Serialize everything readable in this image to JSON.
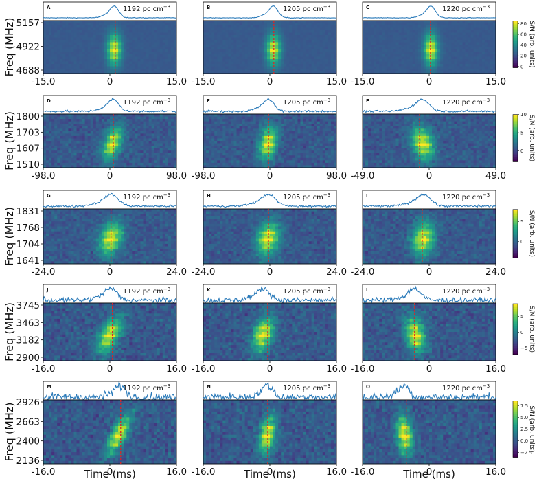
{
  "chart_data": {
    "type": "heatmap",
    "xlabel": "Time (ms)",
    "ylabel": "Freq (MHz)",
    "colorbar_label": "S/N (arb. units)",
    "colormap": "viridis",
    "profile_color": "#2a7ab9",
    "marker_color": "#d62728",
    "rows": [
      {
        "yticks": [
          "5157",
          "4922",
          "4688"
        ],
        "cbar_range": [
          -2,
          85
        ],
        "cbar_ticks": [
          0,
          20,
          40,
          60,
          80
        ],
        "noise": 0.05,
        "panels": [
          {
            "letter": "A",
            "dm": "1192 pc cm",
            "xlim": [
              -15,
              15
            ],
            "xticks": [
              "-15.0",
              "0",
              "15.0"
            ],
            "peak": 1.0,
            "marker": 1.2,
            "drift": 0.0,
            "width": 1.0,
            "profile_noise": 0.01
          },
          {
            "letter": "B",
            "dm": "1205 pc cm",
            "xlim": [
              -15,
              15
            ],
            "xticks": [
              "-15.0",
              "0",
              "15.0"
            ],
            "peak": 0.8,
            "marker": 0.9,
            "drift": 0.0,
            "width": 1.0,
            "profile_noise": 0.01
          },
          {
            "letter": "C",
            "dm": "1220 pc cm",
            "xlim": [
              -15,
              15
            ],
            "xticks": [
              "-15.0",
              "0",
              "15.0"
            ],
            "peak": 0.4,
            "marker": 0.3,
            "drift": 0.0,
            "width": 1.0,
            "profile_noise": 0.01
          }
        ]
      },
      {
        "yticks": [
          "1800",
          "1703",
          "1607",
          "1510"
        ],
        "cbar_range": [
          -3,
          10
        ],
        "cbar_ticks": [
          0,
          5,
          10
        ],
        "noise": 0.25,
        "panels": [
          {
            "letter": "D",
            "dm": "1192 pc cm",
            "xlim": [
              -98,
              98
            ],
            "xticks": [
              "-98.0",
              "0",
              "98.0"
            ],
            "peak": 5,
            "marker": 5,
            "drift": -20,
            "width": 8,
            "profile_noise": 0.03
          },
          {
            "letter": "E",
            "dm": "1205 pc cm",
            "xlim": [
              -98,
              98
            ],
            "xticks": [
              "-98.0",
              "0",
              "98.0"
            ],
            "peak": -2,
            "marker": -2,
            "drift": -10,
            "width": 8,
            "profile_noise": 0.03
          },
          {
            "letter": "F",
            "dm": "1220 pc cm",
            "xlim": [
              -49,
              49
            ],
            "xticks": [
              "-49.0",
              "0",
              "49.0"
            ],
            "peak": -5,
            "marker": -7,
            "drift": 6,
            "width": 5,
            "profile_noise": 0.03
          }
        ]
      },
      {
        "yticks": [
          "1831",
          "1768",
          "1704",
          "1641"
        ],
        "cbar_range": [
          -4,
          8
        ],
        "cbar_ticks": [
          0,
          5
        ],
        "noise": 0.25,
        "panels": [
          {
            "letter": "G",
            "dm": "1192 pc cm",
            "xlim": [
              -24,
              24
            ],
            "xticks": [
              "-24.0",
              "0",
              "24.0"
            ],
            "peak": 0.5,
            "marker": 0.4,
            "drift": -4,
            "width": 2.5,
            "profile_noise": 0.03
          },
          {
            "letter": "H",
            "dm": "1205 pc cm",
            "xlim": [
              -24,
              24
            ],
            "xticks": [
              "-24.0",
              "0",
              "24.0"
            ],
            "peak": -0.5,
            "marker": -0.5,
            "drift": -3,
            "width": 2.5,
            "profile_noise": 0.03
          },
          {
            "letter": "I",
            "dm": "1220 pc cm",
            "xlim": [
              -24,
              24
            ],
            "xticks": [
              "-24.0",
              "0",
              "24.0"
            ],
            "peak": -2,
            "marker": -2.5,
            "drift": -2,
            "width": 2.5,
            "profile_noise": 0.03
          }
        ]
      },
      {
        "yticks": [
          "3745",
          "3463",
          "3182",
          "2900"
        ],
        "cbar_range": [
          -7,
          9
        ],
        "cbar_ticks": [
          -5,
          0,
          5
        ],
        "noise": 0.3,
        "panels": [
          {
            "letter": "J",
            "dm": "1192 pc cm",
            "xlim": [
              -16,
              16
            ],
            "xticks": [
              "-16.0",
              "0",
              "16.0"
            ],
            "peak": 0.2,
            "marker": 0.6,
            "drift": -5,
            "width": 1.5,
            "profile_noise": 0.08
          },
          {
            "letter": "K",
            "dm": "1205 pc cm",
            "xlim": [
              -16,
              16
            ],
            "xticks": [
              "-16.0",
              "0",
              "16.0"
            ],
            "peak": -1.5,
            "marker": -0.5,
            "drift": -3,
            "width": 1.5,
            "profile_noise": 0.08
          },
          {
            "letter": "L",
            "dm": "1220 pc cm",
            "xlim": [
              -16,
              16
            ],
            "xticks": [
              "-16.0",
              "0",
              "16.0"
            ],
            "peak": -3.5,
            "marker": -3.5,
            "drift": 2,
            "width": 1.5,
            "profile_noise": 0.08
          }
        ]
      },
      {
        "yticks": [
          "2926",
          "2663",
          "2400",
          "2136"
        ],
        "cbar_range": [
          -3.5,
          8.5
        ],
        "cbar_ticks": [
          -2.5,
          0.0,
          2.5,
          5.0,
          7.5
        ],
        "noise": 0.3,
        "panels": [
          {
            "letter": "M",
            "dm": "1192 pc cm",
            "xlim": [
              -16,
              16
            ],
            "xticks": [
              "-16.0",
              "0",
              "16.0"
            ],
            "peak": 2.5,
            "marker": 2.6,
            "drift": -6.5,
            "width": 1.2,
            "profile_noise": 0.12
          },
          {
            "letter": "N",
            "dm": "1205 pc cm",
            "xlim": [
              -16,
              16
            ],
            "xticks": [
              "-16.0",
              "0",
              "16.0"
            ],
            "peak": -0.5,
            "marker": -0.5,
            "drift": -2,
            "width": 1.2,
            "profile_noise": 0.12
          },
          {
            "letter": "O",
            "dm": "1220 pc cm",
            "xlim": [
              -16,
              16
            ],
            "xticks": [
              "-16.0",
              "0",
              "16.0"
            ],
            "peak": -6,
            "marker": -5.5,
            "drift": 1.5,
            "width": 1.2,
            "profile_noise": 0.12
          }
        ]
      }
    ]
  }
}
